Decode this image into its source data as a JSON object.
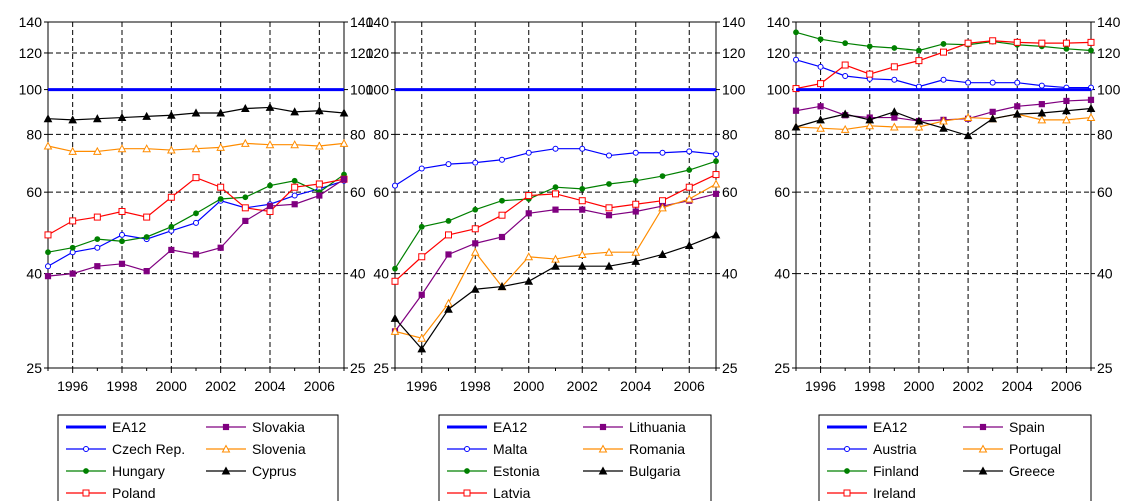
{
  "chart_data": [
    {
      "type": "line",
      "title": "",
      "xlabel": "",
      "ylabel": "",
      "scale": "log",
      "ylim": [
        25,
        140
      ],
      "yticks": [
        25,
        40,
        60,
        80,
        100,
        120,
        140
      ],
      "x": [
        1995,
        1996,
        1997,
        1998,
        1999,
        2000,
        2001,
        2002,
        2003,
        2004,
        2005,
        2006,
        2007
      ],
      "xticks": [
        "1996",
        "1998",
        "2000",
        "2002",
        "2004",
        "2006"
      ],
      "grid": true,
      "legend_position": "bottom",
      "series": [
        {
          "name": "EA12",
          "color": "#0000ff",
          "marker": "none",
          "width": 3,
          "values": [
            100,
            100,
            100,
            100,
            100,
            100,
            100,
            100,
            100,
            100,
            100,
            100,
            100
          ]
        },
        {
          "name": "Czech Rep.",
          "color": "#0000ff",
          "marker": "circle",
          "values": [
            41.5,
            44.5,
            45.5,
            48.5,
            47.5,
            49.5,
            51.5,
            57.5,
            55.5,
            56.5,
            59,
            61,
            63.5
          ]
        },
        {
          "name": "Hungary",
          "color": "#008000",
          "marker": "dot",
          "values": [
            44.5,
            45.5,
            47.5,
            47,
            48,
            50.5,
            54,
            58,
            58.5,
            62,
            63.5,
            60,
            65.5
          ]
        },
        {
          "name": "Poland",
          "color": "#ff0000",
          "marker": "square",
          "values": [
            48.5,
            52,
            53,
            54.5,
            53,
            58.5,
            64.5,
            61.5,
            55.5,
            54.5,
            61.5,
            62.5,
            64
          ]
        },
        {
          "name": "Slovakia",
          "color": "#800080",
          "marker": "square-filled",
          "values": [
            39.5,
            40,
            41.5,
            42,
            40.5,
            45,
            44,
            45.5,
            52,
            56,
            56.5,
            59,
            64
          ]
        },
        {
          "name": "Slovenia",
          "color": "#ff8c00",
          "marker": "triangle",
          "values": [
            75.5,
            73.5,
            73.5,
            74.5,
            74.5,
            74,
            74.5,
            75,
            76.5,
            76,
            76,
            75.5,
            76.5
          ]
        },
        {
          "name": "Cyprus",
          "color": "#000000",
          "marker": "triangle-filled",
          "values": [
            86.5,
            86,
            86.5,
            87,
            87.5,
            88,
            89,
            89,
            91,
            91.5,
            89.5,
            90,
            89
          ]
        }
      ]
    },
    {
      "type": "line",
      "title": "",
      "xlabel": "",
      "ylabel": "",
      "scale": "log",
      "ylim": [
        25,
        140
      ],
      "yticks": [
        25,
        40,
        60,
        80,
        100,
        120,
        140
      ],
      "x": [
        1995,
        1996,
        1997,
        1998,
        1999,
        2000,
        2001,
        2002,
        2003,
        2004,
        2005,
        2006,
        2007
      ],
      "xticks": [
        "1996",
        "1998",
        "2000",
        "2002",
        "2004",
        "2006"
      ],
      "grid": true,
      "legend_position": "bottom",
      "series": [
        {
          "name": "EA12",
          "color": "#0000ff",
          "marker": "none",
          "width": 3,
          "values": [
            100,
            100,
            100,
            100,
            100,
            100,
            100,
            100,
            100,
            100,
            100,
            100,
            100
          ]
        },
        {
          "name": "Malta",
          "color": "#0000ff",
          "marker": "circle",
          "values": [
            62,
            67.5,
            69,
            69.5,
            70.5,
            73,
            74.5,
            74.5,
            72,
            73,
            73,
            73.5,
            72.5
          ]
        },
        {
          "name": "Estonia",
          "color": "#008000",
          "marker": "dot",
          "values": [
            41,
            50.5,
            52,
            55,
            57.5,
            58,
            61.5,
            61,
            62.5,
            63.5,
            65,
            67,
            70
          ]
        },
        {
          "name": "Latvia",
          "color": "#ff0000",
          "marker": "square",
          "values": [
            38.5,
            43.5,
            48.5,
            50,
            53.5,
            59,
            59.5,
            57.5,
            55.5,
            56.5,
            57.5,
            61.5,
            65.5
          ]
        },
        {
          "name": "Lithuania",
          "color": "#800080",
          "marker": "square-filled",
          "values": [
            30,
            36,
            44,
            46.5,
            48,
            54,
            55,
            55,
            53.5,
            54.5,
            56,
            57.5,
            59.5
          ]
        },
        {
          "name": "Romania",
          "color": "#ff8c00",
          "marker": "triangle",
          "values": [
            30,
            29,
            34.5,
            44.5,
            37.5,
            43.5,
            43,
            44,
            44.5,
            44.5,
            55.5,
            58,
            62.5
          ]
        },
        {
          "name": "Bulgaria",
          "color": "#000000",
          "marker": "triangle-filled",
          "values": [
            32,
            27.5,
            33.5,
            37,
            37.5,
            38.5,
            41.5,
            41.5,
            41.5,
            42.5,
            44,
            46,
            48.5
          ]
        }
      ]
    },
    {
      "type": "line",
      "title": "",
      "xlabel": "",
      "ylabel": "",
      "scale": "log",
      "ylim": [
        25,
        140
      ],
      "yticks": [
        25,
        40,
        60,
        80,
        100,
        120,
        140
      ],
      "x": [
        1995,
        1996,
        1997,
        1998,
        1999,
        2000,
        2001,
        2002,
        2003,
        2004,
        2005,
        2006,
        2007
      ],
      "xticks": [
        "1996",
        "1998",
        "2000",
        "2002",
        "2004",
        "2006"
      ],
      "grid": true,
      "legend_position": "bottom",
      "series": [
        {
          "name": "EA12",
          "color": "#0000ff",
          "marker": "none",
          "width": 3,
          "values": [
            100,
            100,
            100,
            100,
            100,
            100,
            100,
            100,
            100,
            100,
            100,
            100,
            100
          ]
        },
        {
          "name": "Austria",
          "color": "#0000ff",
          "marker": "circle",
          "values": [
            116,
            112,
            107,
            105.5,
            105,
            101.5,
            105,
            103.5,
            103.5,
            103.5,
            102,
            101,
            101
          ]
        },
        {
          "name": "Finland",
          "color": "#008000",
          "marker": "dot",
          "values": [
            133,
            128.5,
            126,
            124,
            123,
            121.5,
            125.5,
            125,
            127,
            125,
            124,
            122.5,
            121.5
          ]
        },
        {
          "name": "Ireland",
          "color": "#ff0000",
          "marker": "square",
          "values": [
            100.5,
            103,
            113,
            108,
            112,
            115.5,
            120.5,
            126,
            127.5,
            126.5,
            126,
            126,
            126.5
          ]
        },
        {
          "name": "Spain",
          "color": "#800080",
          "marker": "square-filled",
          "values": [
            90,
            92,
            88,
            87,
            87,
            85.5,
            86,
            86.5,
            89.5,
            92,
            93,
            94.5,
            95
          ]
        },
        {
          "name": "Portugal",
          "color": "#ff8c00",
          "marker": "triangle",
          "values": [
            83,
            82.5,
            82,
            83.5,
            83,
            83,
            85.5,
            87,
            86.5,
            88.5,
            86,
            86,
            87
          ]
        },
        {
          "name": "Greece",
          "color": "#000000",
          "marker": "triangle-filled",
          "values": [
            83,
            86,
            88.5,
            86,
            89.5,
            85.5,
            82.5,
            79.5,
            86.5,
            88.5,
            89,
            90,
            91
          ]
        }
      ]
    }
  ]
}
